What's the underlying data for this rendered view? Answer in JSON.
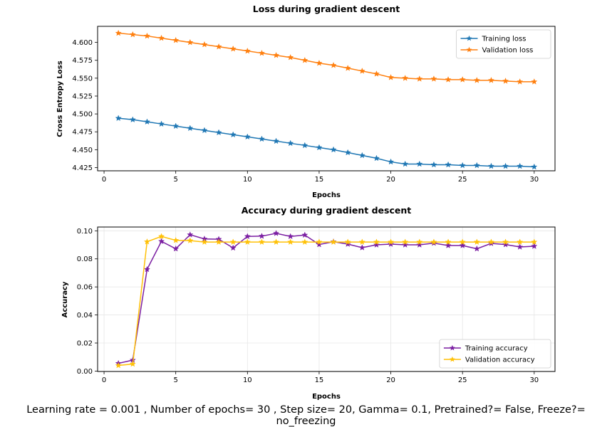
{
  "caption": "Learning rate = 0.001 , Number of epochs= 30 , Step size= 20, Gamma= 0.1, Pretrained?= False, Freeze?= no_freezing",
  "chart_data": [
    {
      "type": "line",
      "title": "Loss during gradient descent",
      "xlabel": "Epochs",
      "ylabel": "Cross Entropy Loss",
      "x": [
        1,
        2,
        3,
        4,
        5,
        6,
        7,
        8,
        9,
        10,
        11,
        12,
        13,
        14,
        15,
        16,
        17,
        18,
        19,
        20,
        21,
        22,
        23,
        24,
        25,
        26,
        27,
        28,
        29,
        30
      ],
      "xlim": [
        -0.45,
        31.45
      ],
      "ylim": [
        4.4205,
        4.6225
      ],
      "xticks": [
        0,
        5,
        10,
        15,
        20,
        25,
        30
      ],
      "xtick_labels": [
        "0",
        "5",
        "10",
        "15",
        "20",
        "25",
        "30"
      ],
      "yticks": [
        4.425,
        4.45,
        4.475,
        4.5,
        4.525,
        4.55,
        4.575,
        4.6
      ],
      "ytick_labels": [
        "4.425",
        "4.450",
        "4.475",
        "4.500",
        "4.525",
        "4.550",
        "4.575",
        "4.600"
      ],
      "grid": false,
      "legend": "top-right",
      "marker": "star",
      "series": [
        {
          "name": "Training loss",
          "color": "#1f77b4",
          "values": [
            4.494,
            4.492,
            4.489,
            4.486,
            4.483,
            4.48,
            4.477,
            4.474,
            4.471,
            4.468,
            4.465,
            4.462,
            4.459,
            4.456,
            4.453,
            4.45,
            4.446,
            4.442,
            4.438,
            4.433,
            4.43,
            4.43,
            4.429,
            4.429,
            4.428,
            4.428,
            4.427,
            4.427,
            4.427,
            4.426
          ]
        },
        {
          "name": "Validation loss",
          "color": "#ff7f0e",
          "values": [
            4.613,
            4.611,
            4.609,
            4.606,
            4.603,
            4.6,
            4.597,
            4.594,
            4.591,
            4.588,
            4.585,
            4.582,
            4.579,
            4.575,
            4.571,
            4.568,
            4.564,
            4.56,
            4.556,
            4.551,
            4.55,
            4.549,
            4.549,
            4.548,
            4.548,
            4.547,
            4.547,
            4.546,
            4.545,
            4.545
          ]
        }
      ]
    },
    {
      "type": "line",
      "title": "Accuracy during gradient descent",
      "xlabel": "Epochs",
      "ylabel": "Accuracy",
      "x": [
        1,
        2,
        3,
        4,
        5,
        6,
        7,
        8,
        9,
        10,
        11,
        12,
        13,
        14,
        15,
        16,
        17,
        18,
        19,
        20,
        21,
        22,
        23,
        24,
        25,
        26,
        27,
        28,
        29,
        30
      ],
      "xlim": [
        -0.45,
        31.45
      ],
      "ylim": [
        -0.0003,
        0.1027
      ],
      "xticks": [
        0,
        5,
        10,
        15,
        20,
        25,
        30
      ],
      "xtick_labels": [
        "0",
        "5",
        "10",
        "15",
        "20",
        "25",
        "30"
      ],
      "yticks": [
        0,
        0.02,
        0.04,
        0.06,
        0.08,
        0.1
      ],
      "ytick_labels": [
        "0.00",
        "0.02",
        "0.04",
        "0.06",
        "0.08",
        "0.10"
      ],
      "grid": true,
      "legend": "bottom-right",
      "marker": "star",
      "series": [
        {
          "name": "Training accuracy",
          "color": "#7b1fa2",
          "values": [
            0.0055,
            0.0078,
            0.0725,
            0.0925,
            0.0872,
            0.0972,
            0.0942,
            0.094,
            0.0878,
            0.096,
            0.0962,
            0.0982,
            0.096,
            0.097,
            0.0902,
            0.0922,
            0.0905,
            0.088,
            0.09,
            0.0905,
            0.09,
            0.09,
            0.0912,
            0.0895,
            0.0895,
            0.0872,
            0.091,
            0.0902,
            0.0885,
            0.089
          ]
        },
        {
          "name": "Validation accuracy",
          "color": "#ffc107",
          "values": [
            0.004,
            0.005,
            0.0922,
            0.096,
            0.0932,
            0.093,
            0.092,
            0.092,
            0.092,
            0.092,
            0.092,
            0.092,
            0.092,
            0.092,
            0.092,
            0.092,
            0.092,
            0.092,
            0.092,
            0.092,
            0.092,
            0.092,
            0.092,
            0.092,
            0.092,
            0.092,
            0.092,
            0.092,
            0.092,
            0.092
          ]
        }
      ]
    }
  ]
}
